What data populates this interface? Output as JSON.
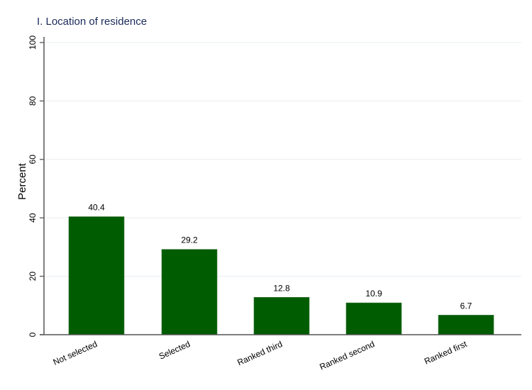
{
  "chart_data": {
    "type": "bar",
    "title": "I. Location of residence",
    "xlabel": "",
    "ylabel": "Percent",
    "ylim": [
      0,
      100
    ],
    "yticks": [
      0,
      20,
      40,
      60,
      80,
      100
    ],
    "grid": true,
    "categories": [
      "Not selected",
      "Selected",
      "Ranked third",
      "Ranked second",
      "Ranked first"
    ],
    "values": [
      40.4,
      29.2,
      12.8,
      10.9,
      6.7
    ],
    "data_labels": [
      "40.4",
      "29.2",
      "12.8",
      "10.9",
      "6.7"
    ],
    "bar_color": "#005C00",
    "title_color": "#1a2a5a"
  }
}
